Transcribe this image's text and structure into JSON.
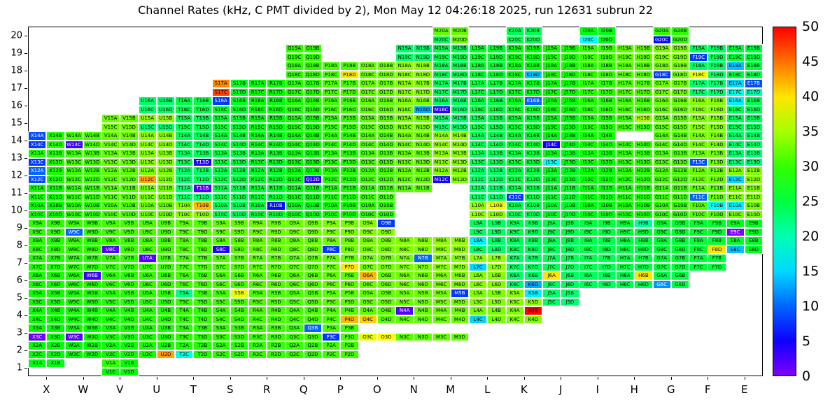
{
  "title": "Channel Rates (kHz, C PMT divided by 2), Mon May 12 04:26:18 2025, run 12631 subrun 22",
  "chart_data": {
    "type": "heatmap",
    "title": "Channel Rates (kHz, C PMT divided by 2), Mon May 12 04:26:18 2025, run 12631 subrun 22",
    "unit": "kHz",
    "x_labels": [
      "X",
      "W",
      "V",
      "U",
      "T",
      "S",
      "R",
      "Q",
      "P",
      "O",
      "N",
      "M",
      "L",
      "K",
      "J",
      "I",
      "H",
      "G",
      "F",
      "E"
    ],
    "y_labels": [
      20,
      19,
      18,
      17,
      16,
      15,
      14,
      13,
      12,
      11,
      10,
      9,
      8,
      7,
      6,
      5,
      4,
      3,
      2,
      1
    ],
    "subcells": [
      "A",
      "B",
      "C",
      "D"
    ],
    "colorbar": {
      "min": 0,
      "max": 50,
      "step": 5,
      "ticks": [
        50,
        45,
        40,
        35,
        30,
        25,
        20,
        15,
        10,
        5,
        0
      ]
    },
    "occupancy": {
      "1": [
        "X",
        "V"
      ],
      "2": [
        "X",
        "W",
        "V",
        "U",
        "T",
        "S",
        "R",
        "Q",
        "P"
      ],
      "3": [
        "X",
        "W",
        "V",
        "U",
        "T",
        "S",
        "R",
        "Q",
        "P",
        "O",
        "N",
        "M"
      ],
      "4": [
        "X",
        "W",
        "V",
        "U",
        "T",
        "S",
        "R",
        "Q",
        "P",
        "O",
        "N",
        "M",
        "L",
        "K"
      ],
      "5": [
        "X",
        "W",
        "V",
        "U",
        "T",
        "S",
        "R",
        "Q",
        "P",
        "O",
        "N",
        "M",
        "L",
        "K",
        "J"
      ],
      "6": [
        "X",
        "W",
        "V",
        "U",
        "T",
        "S",
        "R",
        "Q",
        "P",
        "O",
        "N",
        "M",
        "L",
        "K",
        "J",
        "I",
        "H",
        "G"
      ],
      "7": [
        "X",
        "W",
        "V",
        "U",
        "T",
        "S",
        "R",
        "Q",
        "P",
        "O",
        "N",
        "M",
        "L",
        "K",
        "J",
        "I",
        "H",
        "G",
        "F"
      ],
      "8": [
        "X",
        "W",
        "V",
        "U",
        "T",
        "S",
        "R",
        "Q",
        "P",
        "O",
        "N",
        "M",
        "L",
        "K",
        "J",
        "I",
        "H",
        "G",
        "F",
        "E"
      ],
      "9": [
        "X",
        "W",
        "V",
        "U",
        "T",
        "S",
        "R",
        "Q",
        "P",
        "O",
        "L",
        "K",
        "J",
        "I",
        "H",
        "G",
        "F",
        "E"
      ],
      "10": [
        "X",
        "W",
        "V",
        "U",
        "T",
        "S",
        "R",
        "Q",
        "P",
        "O",
        "L",
        "K",
        "J",
        "I",
        "H",
        "G",
        "F",
        "E"
      ],
      "11": [
        "X",
        "W",
        "V",
        "U",
        "T",
        "S",
        "R",
        "Q",
        "P",
        "O",
        "N",
        "L",
        "K",
        "J",
        "I",
        "H",
        "G",
        "F",
        "E"
      ],
      "12": [
        "X",
        "W",
        "V",
        "U",
        "T",
        "S",
        "R",
        "Q",
        "P",
        "O",
        "N",
        "M",
        "L",
        "K",
        "J",
        "I",
        "H",
        "G",
        "F",
        "E"
      ],
      "13": [
        "X",
        "W",
        "V",
        "U",
        "T",
        "S",
        "R",
        "Q",
        "P",
        "O",
        "N",
        "M",
        "L",
        "K",
        "J",
        "I",
        "H",
        "G",
        "F",
        "E"
      ],
      "14": [
        "X",
        "W",
        "V",
        "U",
        "T",
        "S",
        "R",
        "Q",
        "P",
        "O",
        "N",
        "M",
        "L",
        "K",
        "J",
        "I",
        "H",
        "G",
        "F",
        "E"
      ],
      "15": [
        "V",
        "U",
        "T",
        "S",
        "R",
        "Q",
        "P",
        "O",
        "N",
        "M",
        "L",
        "K",
        "J",
        "I",
        "H",
        "G",
        "F",
        "E"
      ],
      "16": [
        "U",
        "T",
        "S",
        "R",
        "Q",
        "P",
        "O",
        "N",
        "M",
        "L",
        "K",
        "J",
        "I",
        "H",
        "G",
        "F",
        "E"
      ],
      "17": [
        "S",
        "R",
        "Q",
        "P",
        "O",
        "N",
        "M",
        "L",
        "K",
        "J",
        "I",
        "H",
        "G",
        "F",
        "E"
      ],
      "18": [
        "Q",
        "P",
        "O",
        "N",
        "M",
        "L",
        "K",
        "J",
        "I",
        "H",
        "G",
        "F",
        "E"
      ],
      "19": [
        "Q",
        "N",
        "M",
        "L",
        "K",
        "J",
        "I",
        "H",
        "G",
        "F",
        "E"
      ],
      "20": [
        "M",
        "K",
        "I",
        "G"
      ]
    },
    "partial_cells": {
      "X1": [
        "A",
        "B"
      ],
      "O3": [
        "C",
        "D"
      ],
      "N3": [
        "C",
        "D"
      ],
      "M3": [
        "C",
        "D"
      ],
      "N11": [
        "A",
        "B"
      ],
      "H14": [
        "C",
        "D"
      ]
    },
    "default_value_range": [
      23,
      34
    ],
    "outlier_values": {
      "K4B": 50,
      "S17C": 47,
      "S17A": 44,
      "U2D": 43,
      "T2C": 18,
      "T10B": 42,
      "R10B": 6,
      "L10B": 38,
      "F10B": 17,
      "E10A": 16,
      "U12C": 43,
      "M12C": 5,
      "X12A": 10,
      "X12C": 9,
      "Q12D": 4,
      "E12C": 15,
      "T11B": 2,
      "K11C": 8,
      "F11C": 10,
      "T13D": 4,
      "X13C": 8,
      "F13C": 9,
      "J13C": 17,
      "X14A": 9,
      "X14C": 8,
      "W14C": 3,
      "J14C": 5,
      "W9C": 10,
      "O9B": 8,
      "E9C": 0,
      "H9B": 21,
      "V8C": 2,
      "S8C": 4,
      "P8C": 8,
      "F8D": 40,
      "L8A": 16,
      "E8C": 14,
      "U7A": 2,
      "P7D": 40,
      "N7B": 10,
      "L7C": 15,
      "J6A": 40,
      "H6B": 40,
      "W6B": 3,
      "K6D": 13,
      "G6C": 12,
      "O6A": 42,
      "S5B": 38,
      "M5B": 8,
      "K5B": 16,
      "T5A": 22,
      "N4A": 2,
      "P4D": 42,
      "L4C": 15,
      "O4C": 41,
      "X3C": 1,
      "W3C": 2,
      "Q3B": 10,
      "P3C": 8,
      "O3C": 38,
      "O3D": 39,
      "S16A": 8,
      "K16B": 10,
      "M16C": 4,
      "N16D": 13,
      "E16A": 16,
      "E17A": 15,
      "E17B": 9,
      "E17C": 18,
      "E17D": 20,
      "P18D": 40,
      "K18D": 14,
      "F18C": 38,
      "G18C": 8,
      "E18A": 14,
      "F19C": 8,
      "G20C": 6,
      "M20C": 24,
      "I20C": 17,
      "H15B": 35,
      "V1A": 30
    }
  }
}
